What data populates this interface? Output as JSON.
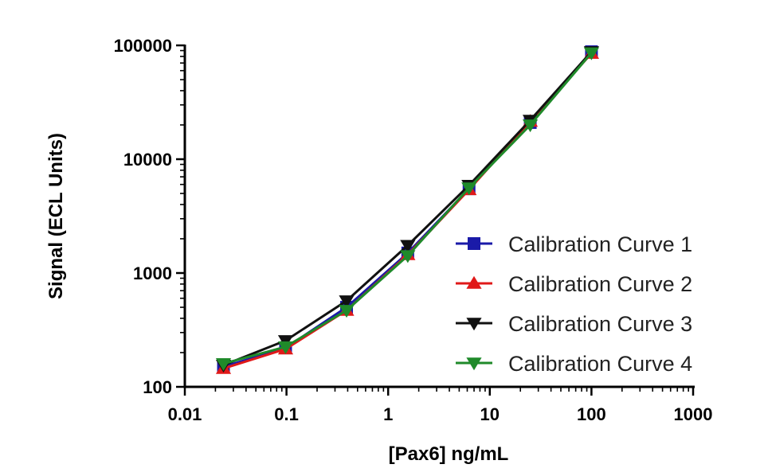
{
  "chart_data": {
    "type": "line",
    "title": "",
    "xlabel": "[Pax6] ng/mL",
    "ylabel": "Signal (ECL  Units)",
    "xscale": "log",
    "yscale": "log",
    "xlim": [
      0.01,
      1000
    ],
    "ylim": [
      100,
      100000
    ],
    "x_ticks": [
      0.01,
      0.1,
      1,
      10,
      100,
      1000
    ],
    "x_tick_labels": [
      "0.01",
      "0.1",
      "1",
      "10",
      "100",
      "1000"
    ],
    "y_ticks": [
      100,
      1000,
      10000,
      100000
    ],
    "y_tick_labels": [
      "100",
      "1000",
      "10000",
      "100000"
    ],
    "grid": false,
    "legend_position": "center-right",
    "x": [
      0.024,
      0.098,
      0.39,
      1.56,
      6.25,
      25,
      100
    ],
    "series": [
      {
        "name": "Calibration Curve 1",
        "color": "#1a1aa8",
        "marker": "square",
        "values": [
          150,
          220,
          500,
          1500,
          5500,
          21000,
          88000
        ]
      },
      {
        "name": "Calibration Curve 2",
        "color": "#e01919",
        "marker": "triangle-up",
        "values": [
          145,
          215,
          470,
          1450,
          5400,
          21500,
          85000
        ]
      },
      {
        "name": "Calibration Curve 3",
        "color": "#111111",
        "marker": "triangle-down",
        "values": [
          155,
          255,
          570,
          1750,
          5900,
          22000,
          88000
        ]
      },
      {
        "name": "Calibration Curve 4",
        "color": "#1f8a2a",
        "marker": "triangle-down",
        "values": [
          160,
          225,
          470,
          1420,
          5600,
          20000,
          86000
        ]
      }
    ]
  }
}
